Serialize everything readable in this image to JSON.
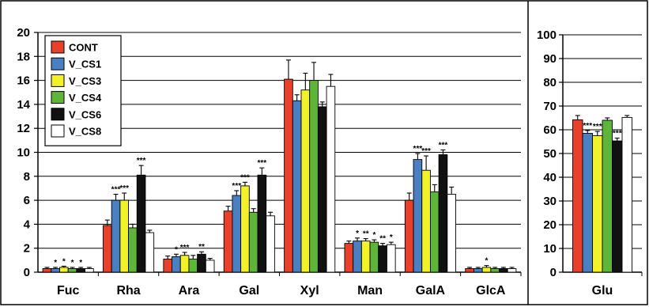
{
  "chart_data": [
    {
      "type": "bar",
      "categories": [
        "Fuc",
        "Rha",
        "Ara",
        "Gal",
        "Xyl",
        "Man",
        "GalA",
        "GlcA"
      ],
      "ylim": [
        0,
        20
      ],
      "yticks": [
        0,
        2,
        4,
        6,
        8,
        10,
        12,
        14,
        16,
        18,
        20
      ],
      "grid": true,
      "legend_position": "top-left",
      "series": [
        {
          "name": "CONT",
          "color": "#e8402a",
          "values": [
            0.3,
            3.9,
            1.1,
            5.1,
            16.1,
            2.4,
            6.0,
            0.3
          ],
          "errors": [
            0.1,
            0.45,
            0.25,
            0.4,
            1.6,
            0.2,
            0.6,
            0.1
          ],
          "significance": [
            "",
            "",
            "",
            "",
            "",
            "",
            "",
            ""
          ]
        },
        {
          "name": "V_CS1",
          "color": "#4a7fc1",
          "values": [
            0.3,
            6.0,
            1.3,
            6.4,
            14.3,
            2.6,
            9.4,
            0.3
          ],
          "errors": [
            0.1,
            0.5,
            0.2,
            0.4,
            0.5,
            0.25,
            0.5,
            0.1
          ],
          "significance": [
            "*",
            "***",
            "*",
            "***",
            "",
            "*",
            "***",
            ""
          ]
        },
        {
          "name": "V_CS3",
          "color": "#f2f22a",
          "values": [
            0.4,
            6.0,
            1.4,
            7.2,
            15.2,
            2.6,
            8.5,
            0.4
          ],
          "errors": [
            0.1,
            0.6,
            0.25,
            0.3,
            1.4,
            0.2,
            1.2,
            0.15
          ],
          "significance": [
            "*",
            "***",
            "***",
            "***",
            "",
            "**",
            "***",
            "*"
          ]
        },
        {
          "name": "V_CS4",
          "color": "#5fb53a",
          "values": [
            0.3,
            3.7,
            1.1,
            5.0,
            16.0,
            2.5,
            6.7,
            0.3
          ],
          "errors": [
            0.1,
            0.3,
            0.3,
            0.3,
            1.5,
            0.2,
            0.6,
            0.1
          ],
          "significance": [
            "*",
            "",
            "",
            "",
            "",
            "*",
            "",
            ""
          ]
        },
        {
          "name": "V_CS6",
          "color": "#111111",
          "values": [
            0.3,
            8.1,
            1.5,
            8.1,
            13.8,
            2.2,
            9.8,
            0.3
          ],
          "errors": [
            0.1,
            0.8,
            0.2,
            0.6,
            0.4,
            0.2,
            0.4,
            0.1
          ],
          "significance": [
            "*",
            "***",
            "**",
            "***",
            "",
            "**",
            "***",
            ""
          ]
        },
        {
          "name": "V_CS8",
          "color": "#ffffff",
          "values": [
            0.3,
            3.3,
            1.0,
            4.7,
            15.5,
            2.3,
            6.5,
            0.3
          ],
          "errors": [
            0.1,
            0.2,
            0.15,
            0.3,
            1.0,
            0.2,
            0.6,
            0.1
          ],
          "significance": [
            "",
            "",
            "",
            "",
            "",
            "*",
            "",
            ""
          ]
        }
      ]
    },
    {
      "type": "bar",
      "categories": [
        "Glu"
      ],
      "ylim": [
        0,
        100
      ],
      "yticks": [
        0,
        10,
        20,
        30,
        40,
        50,
        60,
        70,
        80,
        90,
        100
      ],
      "grid": true,
      "series": [
        {
          "name": "CONT",
          "color": "#e8402a",
          "values": [
            64.2
          ],
          "errors": [
            1.8
          ],
          "significance": [
            ""
          ]
        },
        {
          "name": "V_CS1",
          "color": "#4a7fc1",
          "values": [
            58.5
          ],
          "errors": [
            1.2
          ],
          "significance": [
            "***"
          ]
        },
        {
          "name": "V_CS3",
          "color": "#f2f22a",
          "values": [
            57.5
          ],
          "errors": [
            1.8
          ],
          "significance": [
            "***"
          ]
        },
        {
          "name": "V_CS4",
          "color": "#5fb53a",
          "values": [
            64.0
          ],
          "errors": [
            1.0
          ],
          "significance": [
            ""
          ]
        },
        {
          "name": "V_CS6",
          "color": "#111111",
          "values": [
            55.3
          ],
          "errors": [
            1.2
          ],
          "significance": [
            "***"
          ]
        },
        {
          "name": "V_CS8",
          "color": "#ffffff",
          "values": [
            65.2
          ],
          "errors": [
            0.8
          ],
          "significance": [
            ""
          ]
        }
      ]
    }
  ]
}
